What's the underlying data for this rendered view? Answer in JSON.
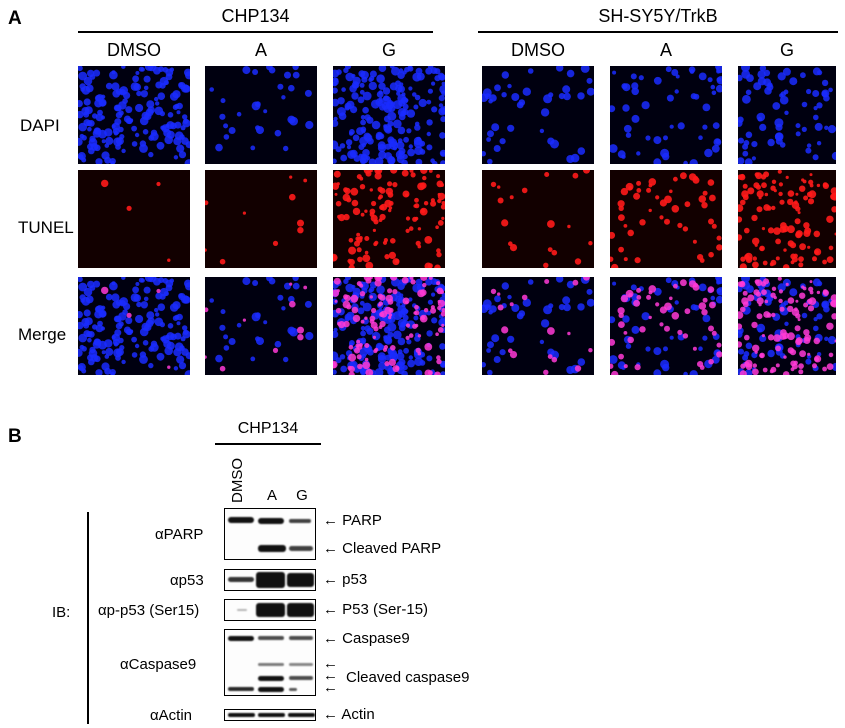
{
  "panel_a": {
    "letter": "A",
    "groups": [
      {
        "title": "CHP134",
        "columns": [
          "DMSO",
          "A",
          "G"
        ]
      },
      {
        "title": "SH-SY5Y/TrkB",
        "columns": [
          "DMSO",
          "A",
          "G"
        ]
      }
    ],
    "rows": [
      "DAPI",
      "TUNEL",
      "Merge"
    ]
  },
  "panel_b": {
    "letter": "B",
    "title": "CHP134",
    "lanes": [
      "DMSO",
      "A",
      "G"
    ],
    "ib_label": "IB:",
    "antibodies": [
      "αPARP",
      "αp53",
      "αp-p53 (Ser15)",
      "αCaspase9",
      "αActin"
    ],
    "bands": [
      "← PARP",
      "← Cleaved PARP",
      "← p53",
      "← P53 (Ser-15)",
      "← Caspase9",
      "Cleaved caspase9",
      "← Actin"
    ],
    "arrow_glyph": "←"
  },
  "colors": {
    "dapi": "#1a2cff",
    "tunel": "#ff1a1a",
    "merge": "#ff3ad6",
    "background": "#000000"
  }
}
